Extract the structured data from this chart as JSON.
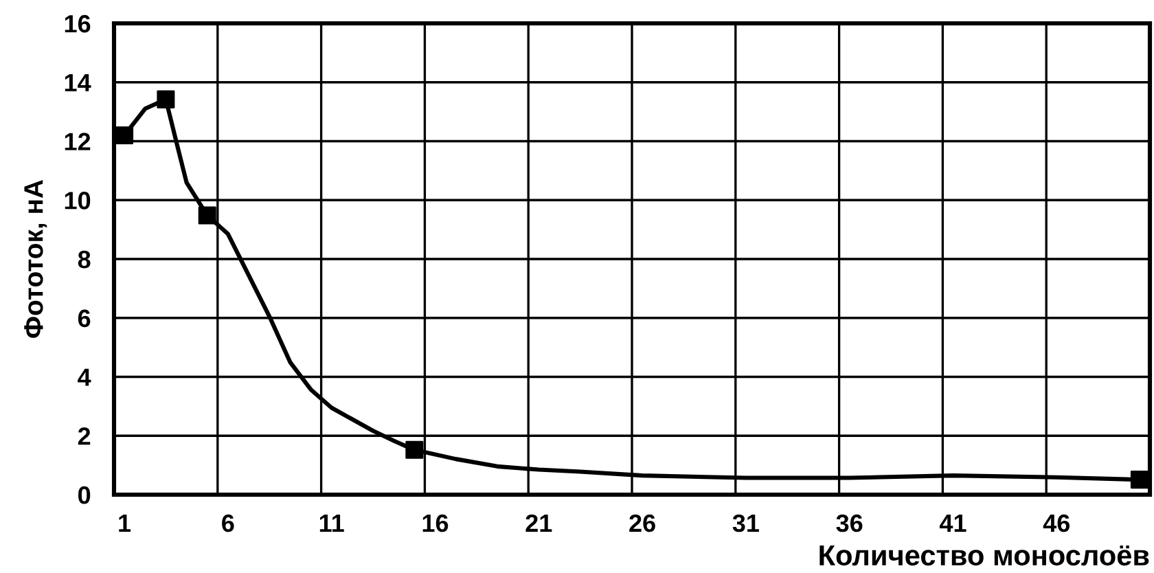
{
  "chart_data": {
    "type": "line",
    "xlabel": "Количество монослоёв",
    "ylabel": "Фототок, нА",
    "xlim": [
      0.5,
      50.5
    ],
    "ylim": [
      0,
      16
    ],
    "yticks": [
      0,
      2,
      4,
      6,
      8,
      10,
      12,
      14,
      16
    ],
    "xticks": [
      1,
      6,
      11,
      16,
      21,
      26,
      31,
      36,
      41,
      46,
      {
        "value": 5.5,
        "label": null
      },
      {
        "value": 10.5,
        "label": null
      },
      {
        "value": 15.5,
        "label": null
      },
      {
        "value": 20.5,
        "label": null
      },
      {
        "value": 25.5,
        "label": null
      },
      {
        "value": 30.5,
        "label": null
      },
      {
        "value": 35.5,
        "label": null
      },
      {
        "value": 40.5,
        "label": null
      },
      {
        "value": 45.5,
        "label": null
      }
    ],
    "grid": true,
    "line_style": "solid",
    "series": [
      {
        "color": "#000000",
        "marker": "none",
        "x": [
          1,
          2,
          3,
          3.5,
          4,
          5,
          6,
          7,
          8,
          9,
          10,
          11,
          12,
          13,
          14,
          15,
          17,
          19,
          21,
          23,
          26,
          31,
          36,
          41,
          46,
          50
        ],
        "values": [
          12.2,
          13.1,
          13.42,
          12.0,
          10.6,
          9.48,
          8.85,
          7.45,
          6.05,
          4.5,
          3.57,
          2.95,
          2.56,
          2.17,
          1.83,
          1.52,
          1.21,
          0.96,
          0.85,
          0.78,
          0.65,
          0.57,
          0.57,
          0.65,
          0.59,
          0.51
        ]
      },
      {
        "type": "scatter",
        "color": "#000000",
        "marker": "square",
        "x": [
          1,
          3,
          5,
          15,
          50
        ],
        "values": [
          12.2,
          13.42,
          9.48,
          1.52,
          0.51
        ]
      }
    ]
  }
}
